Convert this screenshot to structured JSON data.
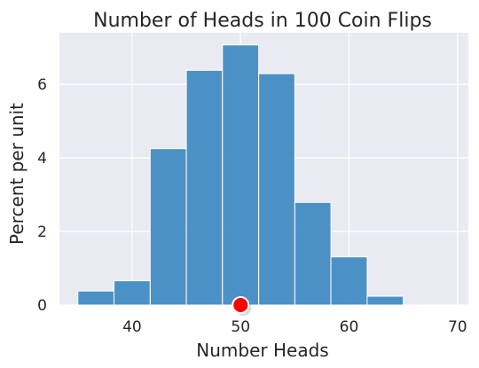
{
  "chart_data": {
    "type": "bar",
    "title": "Number of Heads in 100 Coin Flips",
    "xlabel": "Number Heads",
    "ylabel": "Percent per unit",
    "xlim": [
      33.3,
      71.0
    ],
    "ylim": [
      0,
      7.4
    ],
    "xticks": [
      40,
      50,
      60,
      70
    ],
    "yticks": [
      0,
      2,
      4,
      6
    ],
    "grid": true,
    "bins": [
      {
        "x0": 35.0,
        "x1": 38.33,
        "value": 0.38
      },
      {
        "x0": 38.33,
        "x1": 41.67,
        "value": 0.66
      },
      {
        "x0": 41.67,
        "x1": 45.0,
        "value": 4.25
      },
      {
        "x0": 45.0,
        "x1": 48.33,
        "value": 6.38
      },
      {
        "x0": 48.33,
        "x1": 51.67,
        "value": 7.07
      },
      {
        "x0": 51.67,
        "x1": 55.0,
        "value": 6.29
      },
      {
        "x0": 55.0,
        "x1": 58.33,
        "value": 2.79
      },
      {
        "x0": 58.33,
        "x1": 61.67,
        "value": 1.31
      },
      {
        "x0": 61.67,
        "x1": 65.0,
        "value": 0.24
      },
      {
        "x0": 65.0,
        "x1": 68.33,
        "value": 0.0
      }
    ],
    "marker": {
      "x": 50,
      "y": 0,
      "color": "#ff0000"
    },
    "colors": {
      "bar": "#3a87c0",
      "bar_edge": "#ffffff",
      "plot_bg": "#eaeaf2",
      "grid": "#ffffff"
    }
  }
}
